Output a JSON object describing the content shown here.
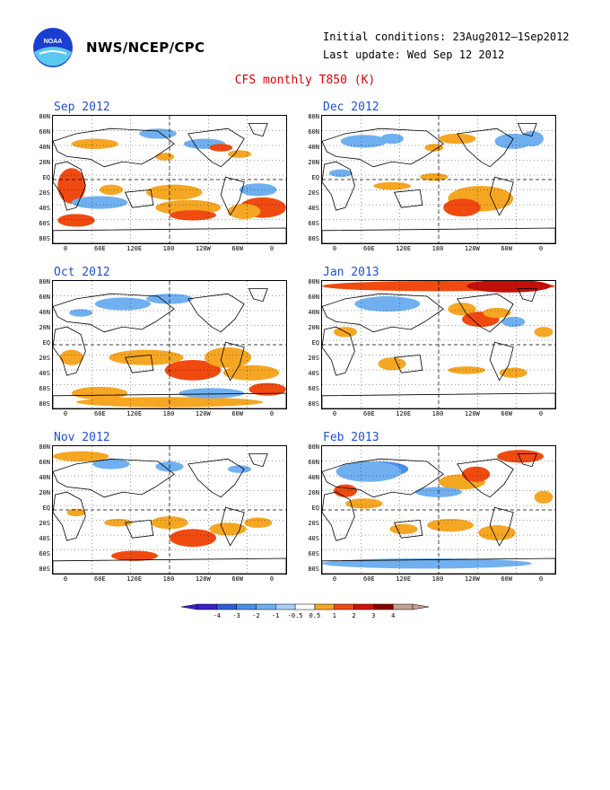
{
  "header": {
    "org": "NWS/NCEP/CPC",
    "initial_conditions": "Initial conditions: 23Aug2012–1Sep2012",
    "last_update": "Last update: Wed Sep 12 2012",
    "title": "CFS monthly T850 (K)",
    "logo_text": "NOAA"
  },
  "lat_labels": [
    "80N",
    "60N",
    "40N",
    "20N",
    "EQ",
    "20S",
    "40S",
    "60S",
    "80S"
  ],
  "lon_labels": [
    "0",
    "60E",
    "120E",
    "180",
    "120W",
    "60W",
    "0"
  ],
  "panels": [
    {
      "month": "Sep 2012"
    },
    {
      "month": "Dec 2012"
    },
    {
      "month": "Oct 2012"
    },
    {
      "month": "Jan 2013"
    },
    {
      "month": "Nov 2012"
    },
    {
      "month": "Feb 2013"
    }
  ],
  "colorbar": {
    "labels": [
      "-4",
      "-3",
      "-2",
      "-1",
      "-0.5",
      "0.5",
      "1",
      "2",
      "3",
      "4"
    ],
    "colors": [
      "#3a1fd0",
      "#2f5fd8",
      "#4a8ee8",
      "#70b0f0",
      "#a8d0f8",
      "#ffffff",
      "#f5a623",
      "#f04a10",
      "#d01008",
      "#8b0000",
      "#c9a090"
    ]
  },
  "anomaly_colors": {
    "warm1": "#f5a623",
    "warm2": "#f04a10",
    "warm3": "#c01008",
    "cool1": "#70b0f0",
    "cool2": "#4a8ee8"
  }
}
